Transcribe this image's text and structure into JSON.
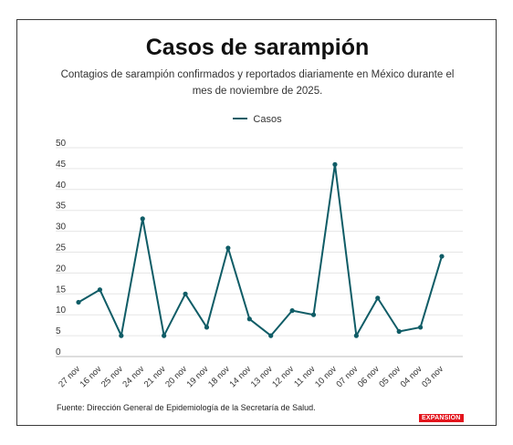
{
  "title": "Casos de sarampión",
  "subtitle": "Contagios de sarampión confirmados y reportados diariamente en México durante el mes de noviembre de 2025.",
  "source": "Fuente: Dirección General de Epidemiología de la Secretaría de Salud.",
  "brand": "EXPANSIÓN",
  "colors": {
    "series": "#0f5c66",
    "brand": "#e3141c",
    "grid": "#e6e6e6"
  },
  "chart_data": {
    "type": "line",
    "title": "Casos de sarampión",
    "legend_position": "top-center",
    "grid": true,
    "ylim": [
      0,
      50
    ],
    "yticks": [
      0,
      5,
      10,
      15,
      20,
      25,
      30,
      35,
      40,
      45,
      50
    ],
    "categories": [
      "27 nov",
      "16 nov",
      "25 nov",
      "24 nov",
      "21 nov",
      "20 nov",
      "19 nov",
      "18 nov",
      "14 nov",
      "13 nov",
      "12 nov",
      "11 nov",
      "10 nov",
      "07 nov",
      "06 nov",
      "05 nov",
      "04 nov",
      "03 nov"
    ],
    "series": [
      {
        "name": "Casos",
        "values": [
          13,
          16,
          5,
          33,
          5,
          15,
          7,
          26,
          9,
          5,
          11,
          10,
          46,
          5,
          14,
          6,
          7,
          24
        ]
      }
    ]
  }
}
